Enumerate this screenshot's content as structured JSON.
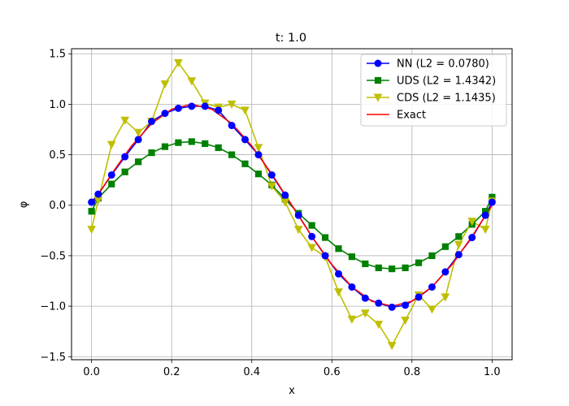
{
  "chart_data": {
    "type": "line",
    "title": "t: 1.0",
    "xlabel": "x",
    "ylabel": "φ",
    "xlim": [
      -0.05,
      1.05
    ],
    "ylim": [
      -1.53,
      1.55
    ],
    "xticks": [
      0.0,
      0.2,
      0.4,
      0.6,
      0.8,
      1.0
    ],
    "xtick_labels": [
      "0.0",
      "0.2",
      "0.4",
      "0.6",
      "0.8",
      "1.0"
    ],
    "yticks": [
      -1.5,
      -1.0,
      -0.5,
      0.0,
      0.5,
      1.0,
      1.5
    ],
    "ytick_labels": [
      "−1.5",
      "−1.0",
      "−0.5",
      "0.0",
      "0.5",
      "1.0",
      "1.5"
    ],
    "grid": true,
    "legend": "top-right",
    "series": [
      {
        "name": "NN (L2 = 0.0780)",
        "color": "#0000ff",
        "marker": "circle",
        "x": [
          0.0,
          0.0167,
          0.05,
          0.0833,
          0.1167,
          0.15,
          0.1833,
          0.2167,
          0.25,
          0.2833,
          0.3167,
          0.35,
          0.3833,
          0.4167,
          0.45,
          0.4833,
          0.5167,
          0.55,
          0.5833,
          0.6167,
          0.65,
          0.6833,
          0.7167,
          0.75,
          0.7833,
          0.8167,
          0.85,
          0.8833,
          0.9167,
          0.95,
          0.9833,
          1.0
        ],
        "y": [
          0.03,
          0.11,
          0.3,
          0.48,
          0.65,
          0.83,
          0.91,
          0.96,
          0.98,
          0.98,
          0.94,
          0.79,
          0.65,
          0.5,
          0.3,
          0.1,
          -0.1,
          -0.31,
          -0.5,
          -0.68,
          -0.81,
          -0.92,
          -0.97,
          -1.01,
          -0.99,
          -0.91,
          -0.81,
          -0.66,
          -0.49,
          -0.32,
          -0.1,
          0.03
        ]
      },
      {
        "name": "UDS (L2 = 1.4342)",
        "color": "#008000",
        "marker": "square",
        "x": [
          0.0,
          0.0167,
          0.05,
          0.0833,
          0.1167,
          0.15,
          0.1833,
          0.2167,
          0.25,
          0.2833,
          0.3167,
          0.35,
          0.3833,
          0.4167,
          0.45,
          0.4833,
          0.5167,
          0.55,
          0.5833,
          0.6167,
          0.65,
          0.6833,
          0.7167,
          0.75,
          0.7833,
          0.8167,
          0.85,
          0.8833,
          0.9167,
          0.95,
          0.9833,
          1.0
        ],
        "y": [
          -0.06,
          0.07,
          0.21,
          0.33,
          0.43,
          0.52,
          0.58,
          0.62,
          0.63,
          0.61,
          0.57,
          0.5,
          0.41,
          0.31,
          0.2,
          0.06,
          -0.08,
          -0.2,
          -0.32,
          -0.43,
          -0.51,
          -0.58,
          -0.62,
          -0.63,
          -0.62,
          -0.57,
          -0.5,
          -0.41,
          -0.31,
          -0.19,
          -0.06,
          0.08
        ]
      },
      {
        "name": "CDS (L2 = 1.1435)",
        "color": "#bfbf00",
        "marker": "triangle-down",
        "x": [
          0.0,
          0.0167,
          0.05,
          0.0833,
          0.1167,
          0.15,
          0.1833,
          0.2167,
          0.25,
          0.2833,
          0.3167,
          0.35,
          0.3833,
          0.4167,
          0.45,
          0.4833,
          0.5167,
          0.55,
          0.5833,
          0.6167,
          0.65,
          0.6833,
          0.7167,
          0.75,
          0.7833,
          0.8167,
          0.85,
          0.8833,
          0.9167,
          0.95,
          0.9833,
          1.0
        ],
        "y": [
          -0.24,
          0.05,
          0.6,
          0.84,
          0.72,
          0.83,
          1.2,
          1.41,
          1.23,
          1.01,
          0.97,
          1.0,
          0.94,
          0.57,
          0.19,
          0.03,
          -0.24,
          -0.42,
          -0.51,
          -0.86,
          -1.13,
          -1.07,
          -1.18,
          -1.39,
          -1.14,
          -0.89,
          -1.03,
          -0.91,
          -0.39,
          -0.16,
          -0.24,
          0.04
        ]
      },
      {
        "name": "Exact",
        "color": "#ff0000",
        "marker": "none",
        "function": "sin(2*pi*x)",
        "x": [
          0.0,
          0.05,
          0.1,
          0.15,
          0.2,
          0.25,
          0.3,
          0.35,
          0.4,
          0.45,
          0.5,
          0.55,
          0.6,
          0.65,
          0.7,
          0.75,
          0.8,
          0.85,
          0.9,
          0.95,
          1.0
        ],
        "y": [
          0.0,
          0.309,
          0.588,
          0.809,
          0.951,
          1.0,
          0.951,
          0.809,
          0.588,
          0.309,
          0.0,
          -0.309,
          -0.588,
          -0.809,
          -0.951,
          -1.0,
          -0.951,
          -0.809,
          -0.588,
          -0.309,
          0.0
        ]
      }
    ]
  }
}
